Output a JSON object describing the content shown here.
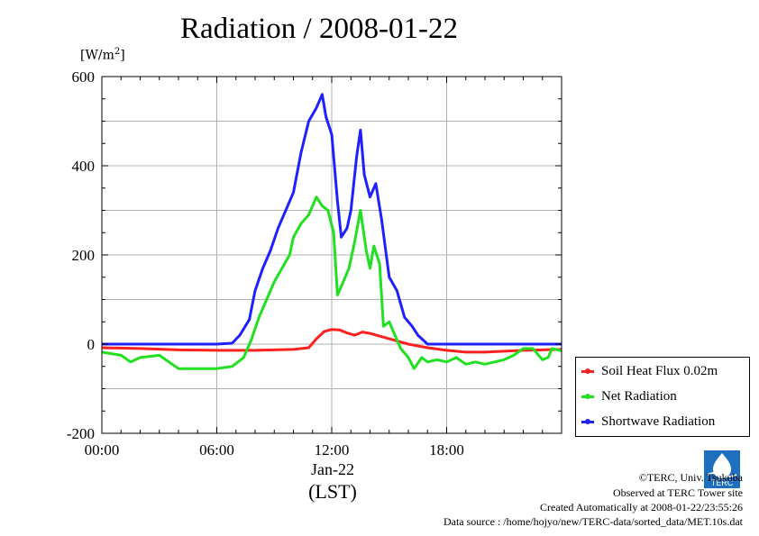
{
  "page": {
    "title": "Radiation / 2008-01-22",
    "unit_label": "[W/m",
    "unit_exp": "2",
    "unit_close": "]",
    "date_label": "Jan-22",
    "tz_label": "(LST)",
    "credits": {
      "copyright": "©TERC, Univ. Tsukuba",
      "observed": "Observed at TERC Tower site",
      "created": "Created Automatically at 2008-01-22/23:55:26",
      "source": "Data source : /home/hojyo/new/TERC-data/sorted_data/MET.10s.dat"
    },
    "logo_text": "TERC",
    "logo_icon": "terc-logo"
  },
  "chart_data": {
    "type": "line",
    "title": "Radiation / 2008-01-22",
    "ylabel": "[W/m2]",
    "xlabel": "Jan-22 (LST)",
    "x_unit": "hour of day",
    "xlim": [
      0,
      24
    ],
    "ylim": [
      -200,
      600
    ],
    "x_ticks": [
      0,
      6,
      12,
      18
    ],
    "x_tick_labels": [
      "00:00",
      "06:00",
      "12:00",
      "18:00"
    ],
    "y_ticks": [
      -200,
      0,
      200,
      400,
      600
    ],
    "y_tick_labels": [
      "-200",
      "0",
      "200",
      "400",
      "600"
    ],
    "grid": true,
    "legend_position": "bottom-right outside",
    "series": [
      {
        "name": "Soil Heat Flux 0.02m",
        "color": "#ff2020",
        "points": [
          [
            0,
            -8
          ],
          [
            2,
            -10
          ],
          [
            4,
            -13
          ],
          [
            6,
            -14
          ],
          [
            8,
            -14
          ],
          [
            10,
            -12
          ],
          [
            10.8,
            -8
          ],
          [
            11.2,
            12
          ],
          [
            11.6,
            28
          ],
          [
            12,
            33
          ],
          [
            12.4,
            32
          ],
          [
            12.8,
            25
          ],
          [
            13.2,
            20
          ],
          [
            13.6,
            27
          ],
          [
            14,
            24
          ],
          [
            14.5,
            18
          ],
          [
            15,
            12
          ],
          [
            16,
            0
          ],
          [
            17,
            -8
          ],
          [
            18,
            -14
          ],
          [
            19,
            -18
          ],
          [
            20,
            -18
          ],
          [
            21,
            -16
          ],
          [
            22,
            -14
          ],
          [
            24,
            -12
          ]
        ]
      },
      {
        "name": "Net Radiation",
        "color": "#20e020",
        "points": [
          [
            0,
            -18
          ],
          [
            1,
            -25
          ],
          [
            1.5,
            -40
          ],
          [
            2,
            -30
          ],
          [
            3,
            -25
          ],
          [
            4,
            -55
          ],
          [
            5,
            -55
          ],
          [
            6,
            -55
          ],
          [
            6.8,
            -50
          ],
          [
            7.4,
            -30
          ],
          [
            7.8,
            10
          ],
          [
            8.2,
            60
          ],
          [
            8.6,
            100
          ],
          [
            9,
            140
          ],
          [
            9.4,
            170
          ],
          [
            9.8,
            200
          ],
          [
            10,
            240
          ],
          [
            10.4,
            270
          ],
          [
            10.8,
            290
          ],
          [
            11.2,
            330
          ],
          [
            11.5,
            310
          ],
          [
            11.8,
            300
          ],
          [
            12.1,
            250
          ],
          [
            12.3,
            110
          ],
          [
            12.6,
            140
          ],
          [
            12.9,
            170
          ],
          [
            13.2,
            230
          ],
          [
            13.5,
            300
          ],
          [
            13.8,
            210
          ],
          [
            14,
            170
          ],
          [
            14.2,
            220
          ],
          [
            14.5,
            180
          ],
          [
            14.7,
            40
          ],
          [
            15,
            50
          ],
          [
            15.3,
            20
          ],
          [
            15.6,
            -10
          ],
          [
            16,
            -30
          ],
          [
            16.3,
            -55
          ],
          [
            16.7,
            -30
          ],
          [
            17,
            -40
          ],
          [
            17.5,
            -35
          ],
          [
            18,
            -40
          ],
          [
            18.5,
            -30
          ],
          [
            19,
            -45
          ],
          [
            19.5,
            -40
          ],
          [
            20,
            -45
          ],
          [
            20.5,
            -40
          ],
          [
            21,
            -35
          ],
          [
            21.5,
            -25
          ],
          [
            22,
            -10
          ],
          [
            22.5,
            -10
          ],
          [
            23,
            -35
          ],
          [
            23.3,
            -30
          ],
          [
            23.5,
            -10
          ],
          [
            24,
            -15
          ]
        ]
      },
      {
        "name": "Shortwave Radiation",
        "color": "#2020ff",
        "points": [
          [
            0,
            0
          ],
          [
            3,
            0
          ],
          [
            6,
            0
          ],
          [
            6.8,
            2
          ],
          [
            7.2,
            20
          ],
          [
            7.7,
            55
          ],
          [
            8,
            120
          ],
          [
            8.4,
            170
          ],
          [
            8.8,
            210
          ],
          [
            9.2,
            260
          ],
          [
            9.6,
            300
          ],
          [
            10,
            340
          ],
          [
            10.4,
            430
          ],
          [
            10.8,
            500
          ],
          [
            11.2,
            530
          ],
          [
            11.5,
            560
          ],
          [
            11.7,
            510
          ],
          [
            12,
            470
          ],
          [
            12.3,
            320
          ],
          [
            12.5,
            240
          ],
          [
            12.8,
            260
          ],
          [
            13,
            300
          ],
          [
            13.3,
            420
          ],
          [
            13.5,
            480
          ],
          [
            13.7,
            380
          ],
          [
            14,
            330
          ],
          [
            14.3,
            360
          ],
          [
            14.6,
            280
          ],
          [
            15,
            150
          ],
          [
            15.4,
            120
          ],
          [
            15.8,
            60
          ],
          [
            16.2,
            40
          ],
          [
            16.5,
            20
          ],
          [
            17,
            0
          ],
          [
            18,
            0
          ],
          [
            20,
            0
          ],
          [
            22,
            0
          ],
          [
            24,
            0
          ]
        ]
      }
    ]
  }
}
